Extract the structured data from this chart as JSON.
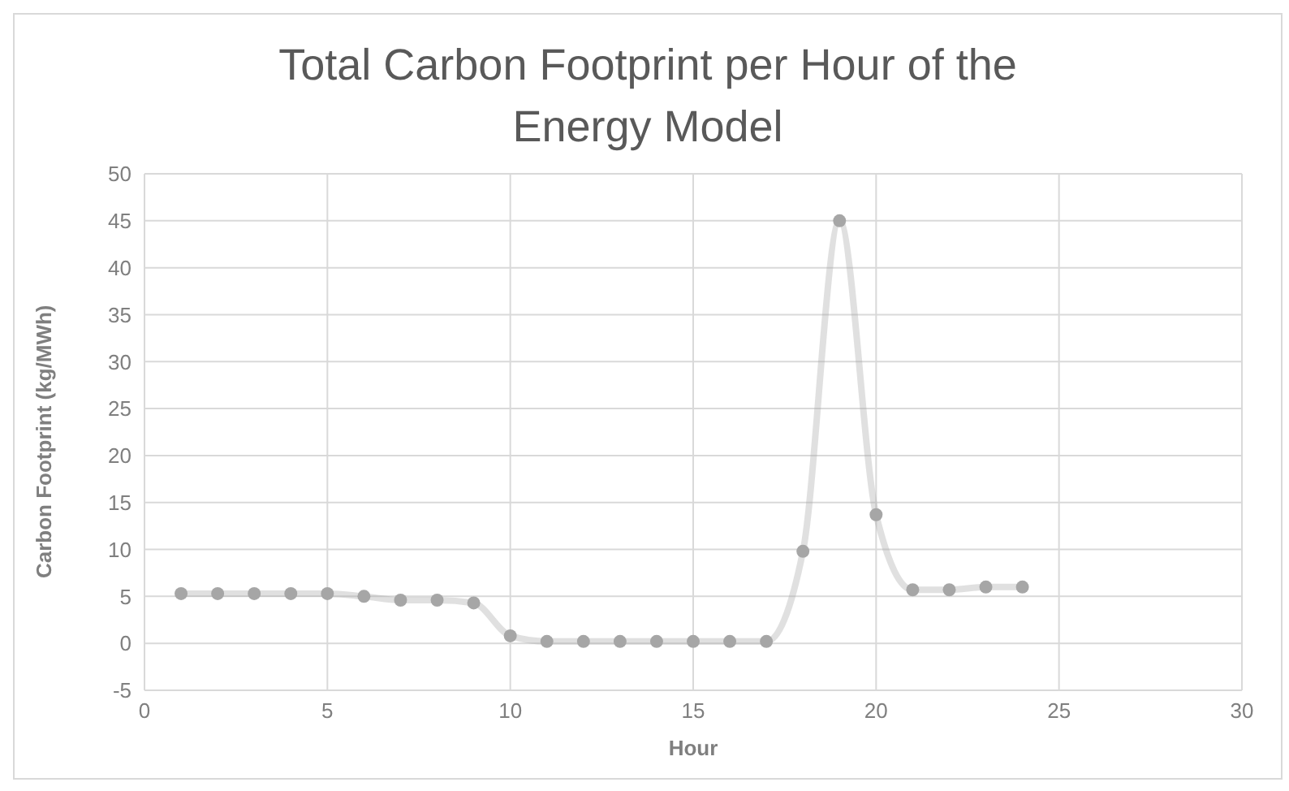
{
  "chart_data": {
    "type": "line",
    "title": "Total Carbon Footprint per Hour of the Energy Model",
    "xlabel": "Hour",
    "ylabel": "Carbon Footprint (kg/MWh)",
    "x": [
      1,
      2,
      3,
      4,
      5,
      6,
      7,
      8,
      9,
      10,
      11,
      12,
      13,
      14,
      15,
      16,
      17,
      18,
      19,
      20,
      21,
      22,
      23,
      24
    ],
    "series": [
      {
        "color": "#a6a6a6",
        "values": [
          5.3,
          5.3,
          5.3,
          5.3,
          5.3,
          5.0,
          4.6,
          4.6,
          4.3,
          0.8,
          0.2,
          0.2,
          0.2,
          0.2,
          0.2,
          0.2,
          0.2,
          9.8,
          45,
          13.7,
          5.7,
          5.7,
          6.0,
          6.0
        ]
      }
    ],
    "xlim": [
      0,
      30
    ],
    "xticks": [
      0,
      5,
      10,
      15,
      20,
      25,
      30
    ],
    "ylim": [
      -5,
      50
    ],
    "yticks": [
      -5,
      0,
      5,
      10,
      15,
      20,
      25,
      30,
      35,
      40,
      45,
      50
    ],
    "grid": true,
    "marker": "circle",
    "line_style": "solid",
    "legend": false
  }
}
